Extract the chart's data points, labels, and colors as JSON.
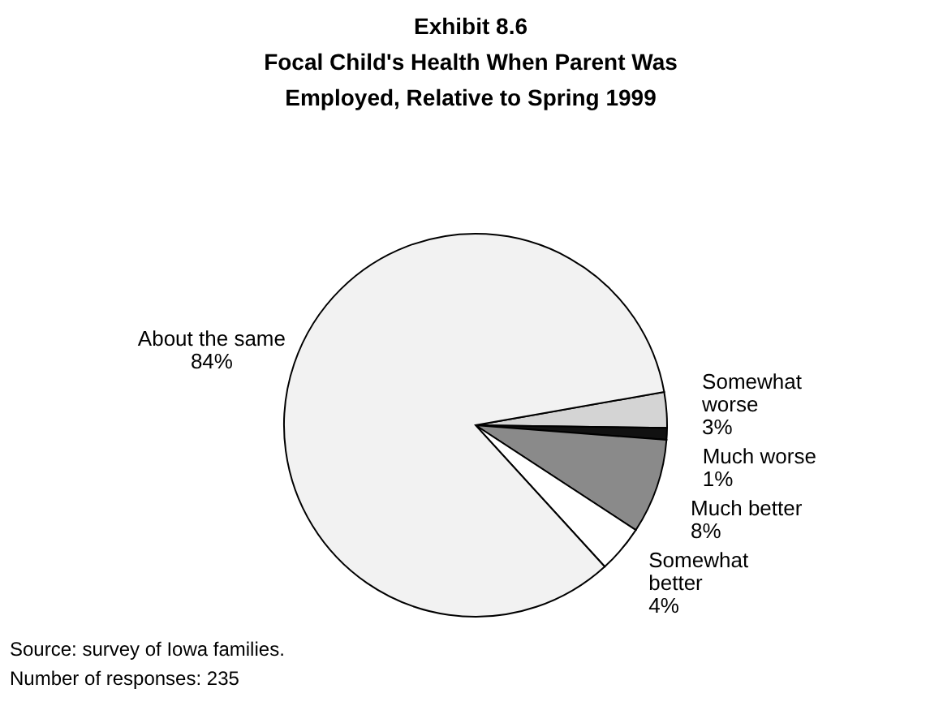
{
  "chart_data": {
    "type": "pie",
    "title": [
      "Exhibit 8.6",
      "Focal Child's Health When Parent Was",
      "Employed, Relative to Spring 1999"
    ],
    "categories": [
      "Somewhat worse",
      "Much worse",
      "Much better",
      "Somewhat better",
      "About the same"
    ],
    "values": [
      3,
      1,
      8,
      4,
      84
    ],
    "colors": [
      "#d4d4d4",
      "#111111",
      "#8a8a8a",
      "#ffffff",
      "#f2f2f2"
    ],
    "value_labels": [
      "3%",
      "1%",
      "8%",
      "4%",
      "84%"
    ],
    "annotations": [
      "Source: survey of Iowa families.",
      "Number of responses:  235"
    ]
  }
}
